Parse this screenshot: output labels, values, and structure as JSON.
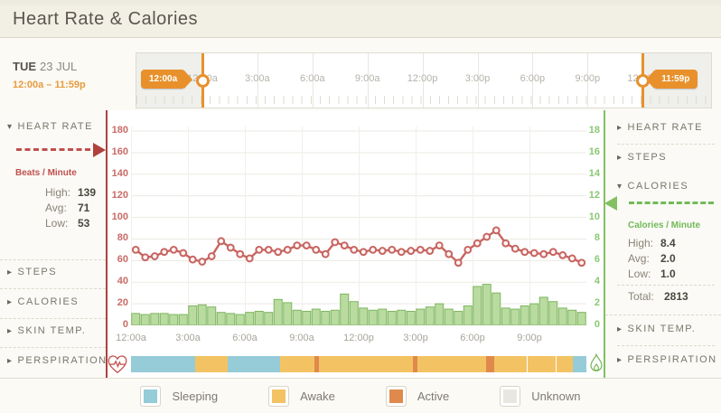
{
  "header": {
    "title": "Heart Rate & Calories"
  },
  "date_panel": {
    "day": "TUE",
    "date": "23 JUL",
    "range": "12:00a – 11:59p"
  },
  "timeline": {
    "left_handle": "12:00a",
    "right_handle": "11:59p",
    "ticks": [
      "12:00a",
      "3:00a",
      "6:00a",
      "9:00a",
      "12:00p",
      "3:00p",
      "6:00p",
      "9:00p",
      "12:00a"
    ]
  },
  "left_sidebar": {
    "heart_rate": {
      "label": "HEART RATE",
      "unit": "Beats / Minute",
      "stats": [
        {
          "label": "High:",
          "value": "139"
        },
        {
          "label": "Avg:",
          "value": "71"
        },
        {
          "label": "Low:",
          "value": "53"
        }
      ]
    },
    "collapsed": [
      "STEPS",
      "CALORIES",
      "SKIN TEMP.",
      "PERSPIRATION"
    ]
  },
  "right_sidebar": {
    "collapsed_top": [
      "HEART RATE",
      "STEPS"
    ],
    "calories": {
      "label": "CALORIES",
      "unit": "Calories / Minute",
      "stats": [
        {
          "label": "High:",
          "value": "8.4"
        },
        {
          "label": "Avg:",
          "value": "2.0"
        },
        {
          "label": "Low:",
          "value": "1.0"
        }
      ],
      "total_label": "Total:",
      "total_value": "2813"
    },
    "collapsed_bottom": [
      "SKIN TEMP.",
      "PERSPIRATION"
    ]
  },
  "chart_data": {
    "type": "line+bar",
    "x_tick_labels": [
      "12:00a",
      "3:00a",
      "6:00a",
      "9:00a",
      "12:00p",
      "3:00p",
      "6:00p",
      "9:00p"
    ],
    "points_per_hour": 2,
    "left_axis": {
      "title": "Beats / Minute",
      "min": 0,
      "max": 180,
      "step": 20,
      "ticks": [
        "180",
        "160",
        "140",
        "120",
        "100",
        "80",
        "60",
        "40",
        "20",
        "0"
      ]
    },
    "right_axis": {
      "title": "Calories / Minute",
      "min": 0,
      "max": 18,
      "step": 2,
      "ticks": [
        "18",
        "16",
        "14",
        "12",
        "10",
        "8",
        "6",
        "4",
        "2",
        "0"
      ]
    },
    "series": [
      {
        "name": "Heart Rate",
        "type": "line",
        "axis": "left",
        "color": "#c76561",
        "values": [
          70,
          63,
          64,
          68,
          70,
          67,
          61,
          59,
          64,
          78,
          72,
          66,
          62,
          70,
          70,
          68,
          70,
          74,
          74,
          70,
          66,
          77,
          74,
          70,
          68,
          70,
          69,
          70,
          68,
          69,
          70,
          69,
          74,
          66,
          58,
          70,
          76,
          82,
          88,
          76,
          71,
          68,
          67,
          66,
          68,
          65,
          62,
          58
        ]
      },
      {
        "name": "Calories",
        "type": "bar",
        "axis": "right",
        "color": "#b9dba0",
        "values": [
          1.1,
          1.0,
          1.1,
          1.1,
          1.0,
          1.0,
          1.8,
          1.9,
          1.7,
          1.2,
          1.1,
          1.0,
          1.2,
          1.3,
          1.2,
          2.4,
          2.1,
          1.4,
          1.3,
          1.5,
          1.3,
          1.4,
          2.9,
          2.2,
          1.6,
          1.4,
          1.5,
          1.3,
          1.4,
          1.3,
          1.5,
          1.7,
          2.0,
          1.5,
          1.3,
          1.8,
          3.6,
          3.8,
          3.0,
          1.6,
          1.5,
          1.8,
          2.0,
          2.6,
          2.2,
          1.6,
          1.4,
          1.2
        ]
      }
    ],
    "grid": true,
    "legend_position": "bottom"
  },
  "activity_band": {
    "segments": [
      {
        "type": "sleeping",
        "width": 14.1
      },
      {
        "type": "awake",
        "width": 7.1
      },
      {
        "type": "sleeping",
        "width": 11.5
      },
      {
        "type": "awake",
        "width": 7.5
      },
      {
        "type": "active",
        "width": 1.0
      },
      {
        "type": "awake",
        "width": 20.8
      },
      {
        "type": "active",
        "width": 1.0
      },
      {
        "type": "awake",
        "width": 14.9
      },
      {
        "type": "active",
        "width": 1.8
      },
      {
        "type": "awake",
        "width": 7.5,
        "gap_after": true
      },
      {
        "type": "awake",
        "width": 6.3,
        "gap_after": true
      },
      {
        "type": "awake",
        "width": 3.6
      },
      {
        "type": "sleeping",
        "width": 2.9
      }
    ]
  },
  "legend": {
    "items": [
      {
        "label": "Sleeping",
        "color": "#96cbd8"
      },
      {
        "label": "Awake",
        "color": "#f3c363"
      },
      {
        "label": "Active",
        "color": "#df8a4c"
      },
      {
        "label": "Unknown",
        "color": "#e9e7e1"
      }
    ]
  },
  "icons": {
    "expanded": "▾",
    "collapsed": "▸"
  },
  "colors": {
    "accent_orange": "#e8912c",
    "heart_red": "#c0504d",
    "cal_green": "#7cb85e",
    "band": {
      "sleeping": "#96cbd8",
      "awake": "#f3c363",
      "active": "#df8a4c",
      "unknown": "#e9e7e1"
    }
  }
}
